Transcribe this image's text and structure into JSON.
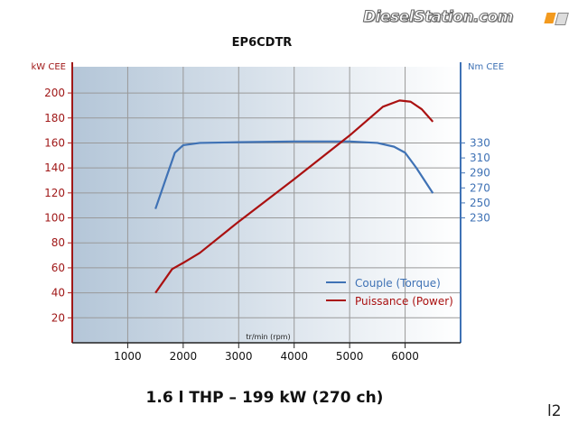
{
  "logo": {
    "text": "DieselStation.com",
    "accent_color": "#f39a1e"
  },
  "page_number": "l2",
  "chart_data": {
    "type": "line",
    "title": "EP6CDTR",
    "subtitle": "1.6 l THP – 199 kW (270 ch)",
    "xlabel": "tr/min (rpm)",
    "ylabel_left": "kW CEE",
    "ylabel_right": "Nm CEE",
    "xlim": [
      0,
      7000
    ],
    "ylim_left": [
      0,
      221
    ],
    "x_ticks": [
      1000,
      2000,
      3000,
      4000,
      5000,
      6000
    ],
    "y_ticks_left": [
      20,
      40,
      60,
      80,
      100,
      120,
      140,
      160,
      180,
      200
    ],
    "y_ticks_right": [
      230,
      250,
      270,
      290,
      310,
      330
    ],
    "right_axis_mapping": {
      "nm_at_160_kw": 330,
      "nm_at_100_kw": 230
    },
    "grid": true,
    "legend_placement": "bottom-right",
    "background_gradient": [
      "#b4c6d8",
      "#ffffff"
    ],
    "series": [
      {
        "name": "Couple (Torque)",
        "axis": "right",
        "color": "#3f72b5",
        "x": [
          1500,
          1700,
          1850,
          2000,
          2300,
          3000,
          4000,
          5000,
          5500,
          5800,
          6000,
          6200,
          6500
        ],
        "y": [
          242,
          285,
          317,
          327,
          330,
          331,
          332,
          332,
          330,
          325,
          317,
          297,
          263
        ]
      },
      {
        "name": "Puissance (Power)",
        "axis": "left",
        "color": "#aa1111",
        "x": [
          1500,
          1800,
          2000,
          2300,
          3000,
          4000,
          5000,
          5600,
          5900,
          6100,
          6300,
          6500
        ],
        "y": [
          40,
          59,
          64,
          72,
          97,
          131,
          166,
          189,
          194,
          193,
          187,
          177
        ]
      }
    ]
  }
}
